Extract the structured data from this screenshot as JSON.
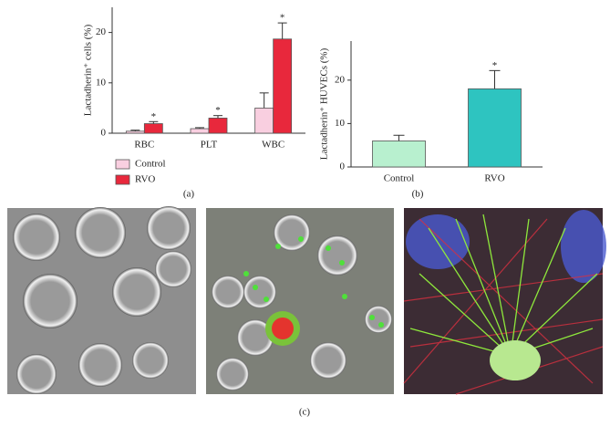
{
  "chart_data": [
    {
      "type": "bar",
      "panel_label": "(a)",
      "ylabel": "Lactadherin⁺ cells (%)",
      "categories": [
        "RBC",
        "PLT",
        "WBC"
      ],
      "series": [
        {
          "name": "Control",
          "color": "#f9cfe0",
          "values": [
            0.4,
            0.9,
            5
          ],
          "errors": [
            0.2,
            0.2,
            3
          ],
          "annotations": [
            null,
            null,
            null
          ]
        },
        {
          "name": "RVO",
          "color": "#e8283c",
          "values": [
            1.9,
            3,
            18.7
          ],
          "errors": [
            0.4,
            0.5,
            3.2
          ],
          "annotations": [
            "*",
            "*",
            "*"
          ]
        }
      ],
      "ylim": [
        0,
        25
      ],
      "yticks": [
        0,
        10,
        20
      ],
      "legend": "bottom-left"
    },
    {
      "type": "bar",
      "panel_label": "(b)",
      "ylabel": "Lactadherin⁺ HUVECs (%)",
      "categories": [
        "Control",
        "RVO"
      ],
      "values": [
        6,
        18
      ],
      "errors": [
        1.3,
        4.2
      ],
      "colors": [
        "#b8f0cf",
        "#2ec4c0"
      ],
      "annotations": [
        null,
        "*"
      ],
      "ylim": [
        0,
        29
      ],
      "yticks": [
        0,
        10,
        20
      ]
    }
  ],
  "figure_label": "(c)"
}
